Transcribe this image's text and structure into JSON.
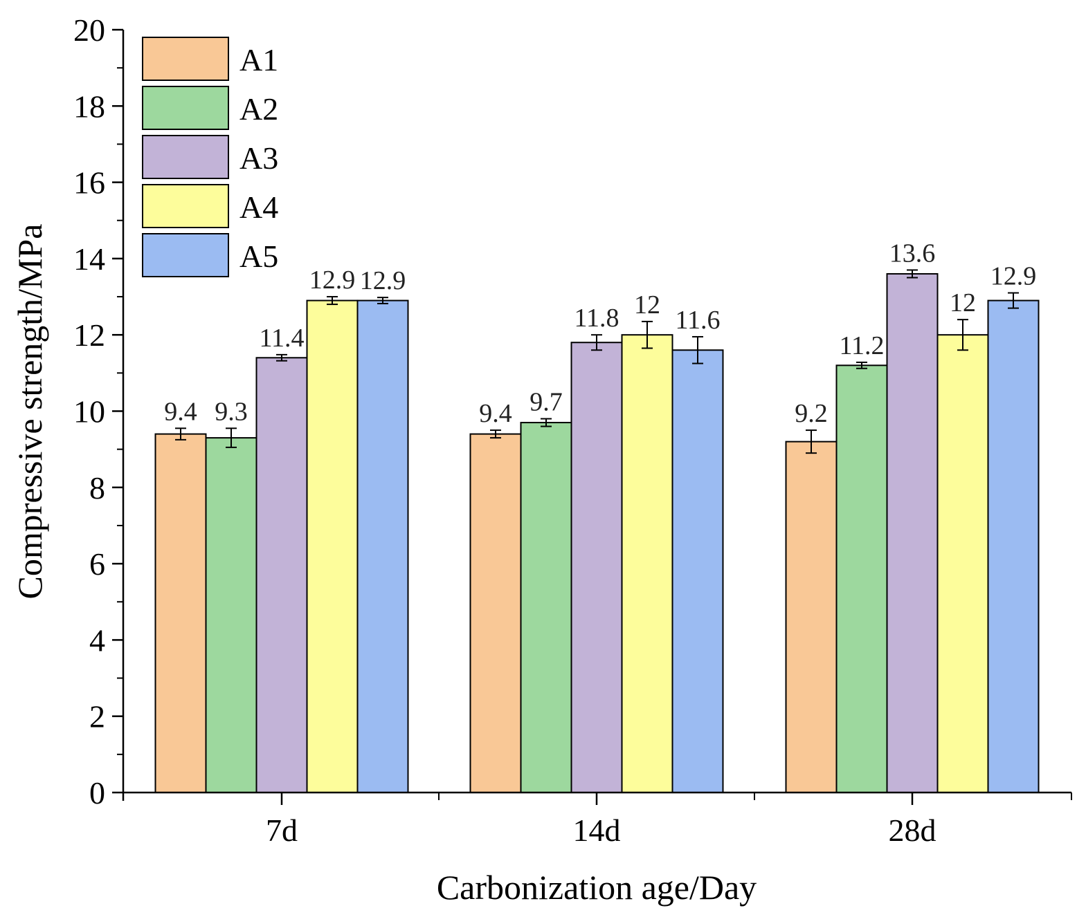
{
  "chart_data": {
    "type": "bar",
    "title": "",
    "xlabel": "Carbonization age/Day",
    "ylabel": "Compressive strength/MPa",
    "categories": [
      "7d",
      "14d",
      "28d"
    ],
    "ylim": [
      0,
      20
    ],
    "yticks": [
      0,
      2,
      4,
      6,
      8,
      10,
      12,
      14,
      16,
      18,
      20
    ],
    "ytick_labels": [
      "0",
      "2",
      "4",
      "6",
      "8",
      "10",
      "12",
      "14",
      "16",
      "18",
      "20"
    ],
    "legend_position": "top-left",
    "grid": false,
    "series": [
      {
        "name": "A1",
        "color": "#F9C896",
        "values": [
          9.4,
          9.4,
          9.2
        ],
        "errors": [
          0.15,
          0.1,
          0.3
        ],
        "labels": [
          "9.4",
          "9.4",
          "9.2"
        ]
      },
      {
        "name": "A2",
        "color": "#9DD89E",
        "values": [
          9.3,
          9.7,
          11.2
        ],
        "errors": [
          0.25,
          0.1,
          0.08
        ],
        "labels": [
          "9.3",
          "9.7",
          "11.2"
        ]
      },
      {
        "name": "A3",
        "color": "#C2B3D7",
        "values": [
          11.4,
          11.8,
          13.6
        ],
        "errors": [
          0.08,
          0.2,
          0.1
        ],
        "labels": [
          "11.4",
          "11.8",
          "13.6"
        ]
      },
      {
        "name": "A4",
        "color": "#FDFD9B",
        "values": [
          12.9,
          12.0,
          12.0
        ],
        "errors": [
          0.1,
          0.35,
          0.4
        ],
        "labels": [
          "12.9",
          "12",
          "12"
        ]
      },
      {
        "name": "A5",
        "color": "#9BBBF2",
        "values": [
          12.9,
          11.6,
          12.9
        ],
        "errors": [
          0.08,
          0.35,
          0.2
        ],
        "labels": [
          "12.9",
          "11.6",
          "12.9"
        ]
      }
    ]
  }
}
